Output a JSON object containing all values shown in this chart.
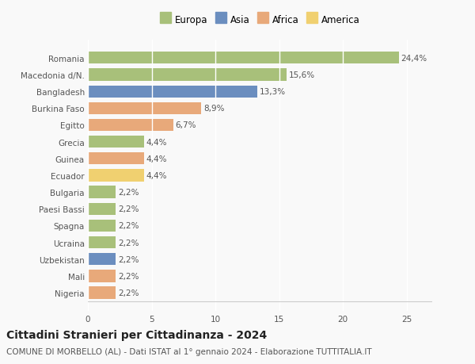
{
  "categories": [
    "Romania",
    "Macedonia d/N.",
    "Bangladesh",
    "Burkina Faso",
    "Egitto",
    "Grecia",
    "Guinea",
    "Ecuador",
    "Bulgaria",
    "Paesi Bassi",
    "Spagna",
    "Ucraina",
    "Uzbekistan",
    "Mali",
    "Nigeria"
  ],
  "values": [
    24.4,
    15.6,
    13.3,
    8.9,
    6.7,
    4.4,
    4.4,
    4.4,
    2.2,
    2.2,
    2.2,
    2.2,
    2.2,
    2.2,
    2.2
  ],
  "labels": [
    "24,4%",
    "15,6%",
    "13,3%",
    "8,9%",
    "6,7%",
    "4,4%",
    "4,4%",
    "4,4%",
    "2,2%",
    "2,2%",
    "2,2%",
    "2,2%",
    "2,2%",
    "2,2%",
    "2,2%"
  ],
  "colors": [
    "#a8c07a",
    "#a8c07a",
    "#6b8ebf",
    "#e8a97a",
    "#e8a97a",
    "#a8c07a",
    "#e8a97a",
    "#f0d070",
    "#a8c07a",
    "#a8c07a",
    "#a8c07a",
    "#a8c07a",
    "#6b8ebf",
    "#e8a97a",
    "#e8a97a"
  ],
  "legend_labels": [
    "Europa",
    "Asia",
    "Africa",
    "America"
  ],
  "legend_colors": [
    "#a8c07a",
    "#6b8ebf",
    "#e8a97a",
    "#f0d070"
  ],
  "xlim": [
    0,
    27
  ],
  "xticks": [
    0,
    5,
    10,
    15,
    20,
    25
  ],
  "title": "Cittadini Stranieri per Cittadinanza - 2024",
  "subtitle": "COMUNE DI MORBELLO (AL) - Dati ISTAT al 1° gennaio 2024 - Elaborazione TUTTITALIA.IT",
  "background_color": "#f9f9f9",
  "bar_height": 0.72,
  "label_fontsize": 7.5,
  "tick_fontsize": 7.5,
  "legend_fontsize": 8.5,
  "title_fontsize": 10,
  "subtitle_fontsize": 7.5
}
